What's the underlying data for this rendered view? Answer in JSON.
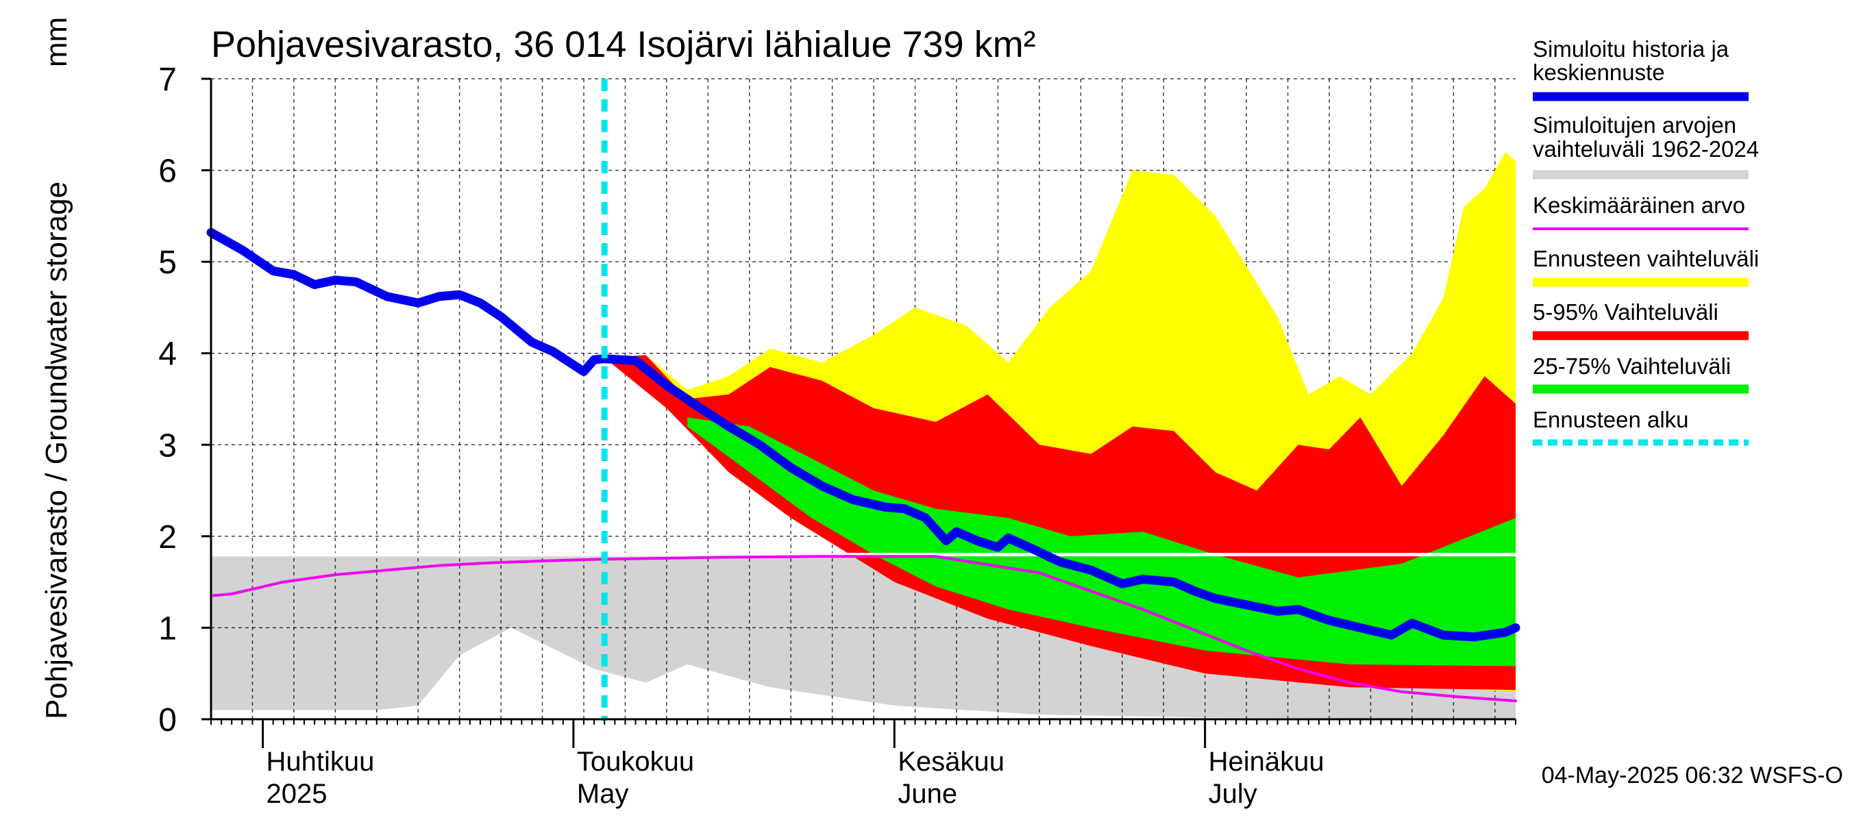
{
  "chart_data": {
    "type": "area",
    "title": "Pohjavesivarasto, 36 014 Isojärvi lähialue 739 km²",
    "ylabel": "Pohjavesivarasto / Groundwater storage",
    "yunit": "mm",
    "ylim": [
      0,
      7
    ],
    "yticks": [
      0,
      1,
      2,
      3,
      4,
      5,
      6,
      7
    ],
    "xlim": [
      "2025-03-27",
      "2025-07-31"
    ],
    "grid": true,
    "legend_position": "right",
    "month_labels": [
      {
        "date": "2025-04-01",
        "fi": "Huhtikuu",
        "en": "2025"
      },
      {
        "date": "2025-05-01",
        "fi": "Toukokuu",
        "en": "May"
      },
      {
        "date": "2025-06-01",
        "fi": "Kesäkuu",
        "en": "June"
      },
      {
        "date": "2025-07-01",
        "fi": "Heinäkuu",
        "en": "July"
      }
    ],
    "forecast_start": "2025-05-04",
    "historical_max_line": 1.8,
    "timestamp": "04-May-2025 06:32 WSFS-O",
    "legend": [
      {
        "label": "Simuloitu historia ja keskiennuste",
        "color": "#0000ee"
      },
      {
        "label": "Simuloitujen arvojen vaihteluväli 1962-2024",
        "color": "#d3d3d3"
      },
      {
        "label": "Keskimääräinen arvo",
        "color": "#ee00ee"
      },
      {
        "label": "Ennusteen vaihteluväli",
        "color": "#ffff00"
      },
      {
        "label": "5-95% Vaihteluväli",
        "color": "#ff0000"
      },
      {
        "label": "25-75% Vaihteluväli",
        "color": "#00ee00"
      },
      {
        "label": "Ennusteen alku",
        "color": "#00e5ee"
      }
    ],
    "series": [
      {
        "name": "Simuloitu historia ja keskiennuste",
        "color": "#0000ee",
        "points": [
          [
            "2025-03-27",
            5.32
          ],
          [
            "2025-03-30",
            5.13
          ],
          [
            "2025-04-02",
            4.9
          ],
          [
            "2025-04-04",
            4.86
          ],
          [
            "2025-04-06",
            4.75
          ],
          [
            "2025-04-08",
            4.8
          ],
          [
            "2025-04-10",
            4.78
          ],
          [
            "2025-04-13",
            4.62
          ],
          [
            "2025-04-16",
            4.55
          ],
          [
            "2025-04-18",
            4.62
          ],
          [
            "2025-04-20",
            4.64
          ],
          [
            "2025-04-22",
            4.55
          ],
          [
            "2025-04-24",
            4.4
          ],
          [
            "2025-04-27",
            4.12
          ],
          [
            "2025-04-29",
            4.02
          ],
          [
            "2025-05-02",
            3.8
          ],
          [
            "2025-05-03",
            3.93
          ],
          [
            "2025-05-04",
            3.94
          ],
          [
            "2025-05-07",
            3.92
          ],
          [
            "2025-05-10",
            3.65
          ],
          [
            "2025-05-13",
            3.42
          ],
          [
            "2025-05-16",
            3.2
          ],
          [
            "2025-05-19",
            3.0
          ],
          [
            "2025-05-22",
            2.75
          ],
          [
            "2025-05-25",
            2.55
          ],
          [
            "2025-05-28",
            2.4
          ],
          [
            "2025-05-31",
            2.32
          ],
          [
            "2025-06-02",
            2.3
          ],
          [
            "2025-06-04",
            2.2
          ],
          [
            "2025-06-06",
            1.95
          ],
          [
            "2025-06-07",
            2.05
          ],
          [
            "2025-06-09",
            1.95
          ],
          [
            "2025-06-11",
            1.88
          ],
          [
            "2025-06-12",
            1.98
          ],
          [
            "2025-06-14",
            1.88
          ],
          [
            "2025-06-17",
            1.72
          ],
          [
            "2025-06-20",
            1.63
          ],
          [
            "2025-06-23",
            1.48
          ],
          [
            "2025-06-25",
            1.53
          ],
          [
            "2025-06-28",
            1.5
          ],
          [
            "2025-06-30",
            1.4
          ],
          [
            "2025-07-02",
            1.32
          ],
          [
            "2025-07-05",
            1.25
          ],
          [
            "2025-07-08",
            1.18
          ],
          [
            "2025-07-10",
            1.2
          ],
          [
            "2025-07-13",
            1.08
          ],
          [
            "2025-07-16",
            1.0
          ],
          [
            "2025-07-19",
            0.92
          ],
          [
            "2025-07-21",
            1.05
          ],
          [
            "2025-07-24",
            0.92
          ],
          [
            "2025-07-27",
            0.9
          ],
          [
            "2025-07-30",
            0.95
          ],
          [
            "2025-07-31",
            1.0
          ]
        ]
      },
      {
        "name": "Keskimääräinen arvo",
        "color": "#ee00ee",
        "points": [
          [
            "2025-03-27",
            1.35
          ],
          [
            "2025-03-29",
            1.37
          ],
          [
            "2025-04-03",
            1.5
          ],
          [
            "2025-04-08",
            1.58
          ],
          [
            "2025-04-13",
            1.63
          ],
          [
            "2025-04-18",
            1.68
          ],
          [
            "2025-04-23",
            1.71
          ],
          [
            "2025-04-28",
            1.73
          ],
          [
            "2025-05-04",
            1.75
          ],
          [
            "2025-05-15",
            1.77
          ],
          [
            "2025-05-25",
            1.78
          ],
          [
            "2025-06-05",
            1.78
          ],
          [
            "2025-06-15",
            1.6
          ],
          [
            "2025-06-25",
            1.2
          ],
          [
            "2025-07-05",
            0.75
          ],
          [
            "2025-07-10",
            0.55
          ],
          [
            "2025-07-15",
            0.4
          ],
          [
            "2025-07-20",
            0.3
          ],
          [
            "2025-07-25",
            0.25
          ],
          [
            "2025-07-31",
            0.2
          ]
        ]
      }
    ],
    "bands": [
      {
        "name": "Simuloitujen arvojen vaihteluväli 1962-2024",
        "color": "#d3d3d3",
        "upper": [
          [
            "2025-03-27",
            1.78
          ],
          [
            "2025-07-31",
            1.78
          ]
        ],
        "lower": [
          [
            "2025-03-27",
            0.1
          ],
          [
            "2025-04-12",
            0.1
          ],
          [
            "2025-04-16",
            0.15
          ],
          [
            "2025-04-20",
            0.7
          ],
          [
            "2025-04-25",
            1.0
          ],
          [
            "2025-05-03",
            0.55
          ],
          [
            "2025-05-08",
            0.4
          ],
          [
            "2025-05-12",
            0.6
          ],
          [
            "2025-05-20",
            0.35
          ],
          [
            "2025-06-01",
            0.15
          ],
          [
            "2025-06-15",
            0.05
          ],
          [
            "2025-07-01",
            0.02
          ],
          [
            "2025-07-31",
            0.0
          ]
        ]
      },
      {
        "name": "Ennusteen vaihteluväli",
        "color": "#ffff00",
        "upper": [
          [
            "2025-05-04",
            3.95
          ],
          [
            "2025-05-08",
            3.98
          ],
          [
            "2025-05-12",
            3.6
          ],
          [
            "2025-05-16",
            3.75
          ],
          [
            "2025-05-20",
            4.05
          ],
          [
            "2025-05-25",
            3.9
          ],
          [
            "2025-05-30",
            4.2
          ],
          [
            "2025-06-03",
            4.5
          ],
          [
            "2025-06-08",
            4.3
          ],
          [
            "2025-06-12",
            3.9
          ],
          [
            "2025-06-16",
            4.5
          ],
          [
            "2025-06-20",
            4.9
          ],
          [
            "2025-06-24",
            6.0
          ],
          [
            "2025-06-28",
            5.95
          ],
          [
            "2025-07-02",
            5.5
          ],
          [
            "2025-07-08",
            4.4
          ],
          [
            "2025-07-11",
            3.55
          ],
          [
            "2025-07-14",
            3.75
          ],
          [
            "2025-07-17",
            3.55
          ],
          [
            "2025-07-21",
            4.0
          ],
          [
            "2025-07-24",
            4.6
          ],
          [
            "2025-07-26",
            5.6
          ],
          [
            "2025-07-28",
            5.8
          ],
          [
            "2025-07-30",
            6.2
          ],
          [
            "2025-07-31",
            6.1
          ]
        ],
        "lower": [
          [
            "2025-05-04",
            3.95
          ],
          [
            "2025-05-10",
            3.45
          ],
          [
            "2025-05-16",
            2.8
          ],
          [
            "2025-05-22",
            2.3
          ],
          [
            "2025-06-01",
            1.6
          ],
          [
            "2025-06-10",
            1.2
          ],
          [
            "2025-06-20",
            0.85
          ],
          [
            "2025-07-01",
            0.55
          ],
          [
            "2025-07-15",
            0.4
          ],
          [
            "2025-07-31",
            0.3
          ]
        ]
      },
      {
        "name": "5-95% Vaihteluväli",
        "color": "#ff0000",
        "upper": [
          [
            "2025-05-04",
            3.95
          ],
          [
            "2025-05-08",
            3.98
          ],
          [
            "2025-05-12",
            3.5
          ],
          [
            "2025-05-16",
            3.55
          ],
          [
            "2025-05-20",
            3.85
          ],
          [
            "2025-05-25",
            3.7
          ],
          [
            "2025-05-30",
            3.4
          ],
          [
            "2025-06-05",
            3.25
          ],
          [
            "2025-06-10",
            3.55
          ],
          [
            "2025-06-15",
            3.0
          ],
          [
            "2025-06-20",
            2.9
          ],
          [
            "2025-06-24",
            3.2
          ],
          [
            "2025-06-28",
            3.15
          ],
          [
            "2025-07-02",
            2.7
          ],
          [
            "2025-07-06",
            2.5
          ],
          [
            "2025-07-10",
            3.0
          ],
          [
            "2025-07-13",
            2.95
          ],
          [
            "2025-07-16",
            3.3
          ],
          [
            "2025-07-20",
            2.55
          ],
          [
            "2025-07-24",
            3.1
          ],
          [
            "2025-07-28",
            3.75
          ],
          [
            "2025-07-31",
            3.45
          ]
        ],
        "lower": [
          [
            "2025-05-04",
            3.95
          ],
          [
            "2025-05-10",
            3.4
          ],
          [
            "2025-05-16",
            2.7
          ],
          [
            "2025-05-22",
            2.2
          ],
          [
            "2025-06-01",
            1.5
          ],
          [
            "2025-06-10",
            1.1
          ],
          [
            "2025-06-20",
            0.8
          ],
          [
            "2025-07-01",
            0.5
          ],
          [
            "2025-07-15",
            0.35
          ],
          [
            "2025-07-31",
            0.32
          ]
        ]
      },
      {
        "name": "25-75% Vaihteluväli",
        "color": "#00ee00",
        "upper": [
          [
            "2025-05-12",
            3.3
          ],
          [
            "2025-05-18",
            3.2
          ],
          [
            "2025-05-24",
            2.85
          ],
          [
            "2025-05-30",
            2.5
          ],
          [
            "2025-06-05",
            2.3
          ],
          [
            "2025-06-12",
            2.2
          ],
          [
            "2025-06-18",
            2.0
          ],
          [
            "2025-06-25",
            2.05
          ],
          [
            "2025-07-02",
            1.8
          ],
          [
            "2025-07-10",
            1.55
          ],
          [
            "2025-07-20",
            1.7
          ],
          [
            "2025-07-31",
            2.2
          ]
        ],
        "lower": [
          [
            "2025-05-12",
            3.2
          ],
          [
            "2025-05-18",
            2.7
          ],
          [
            "2025-05-24",
            2.2
          ],
          [
            "2025-05-30",
            1.8
          ],
          [
            "2025-06-05",
            1.45
          ],
          [
            "2025-06-12",
            1.2
          ],
          [
            "2025-06-20",
            1.0
          ],
          [
            "2025-07-01",
            0.75
          ],
          [
            "2025-07-15",
            0.6
          ],
          [
            "2025-07-31",
            0.58
          ]
        ]
      }
    ]
  }
}
